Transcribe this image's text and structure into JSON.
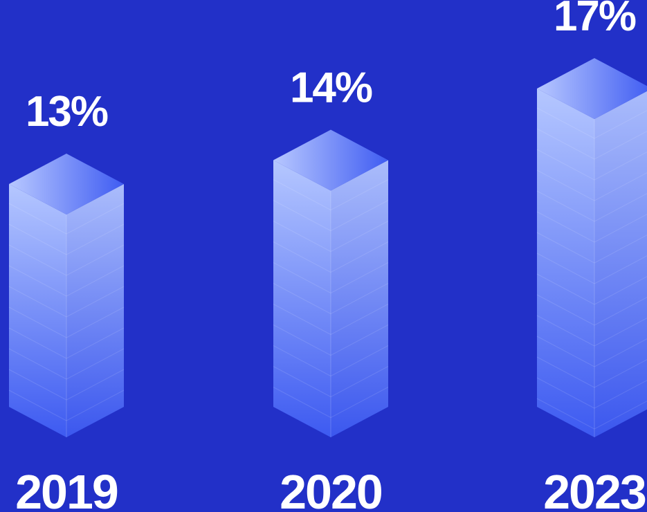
{
  "chart_data": {
    "type": "bar",
    "title": "",
    "xlabel": "",
    "ylabel": "",
    "categories": [
      "2019",
      "2020",
      "2023"
    ],
    "values": [
      13,
      14,
      17
    ],
    "value_labels": [
      "13%",
      "14%",
      "17%"
    ],
    "unit": "%",
    "grid": false,
    "legend": "none",
    "style": "isometric-3d-columns"
  },
  "colors": {
    "background": "#2230c8",
    "column_top_light": "#b8c8ff",
    "column_top_dark": "#3f5cf2",
    "column_front_top": "#b5c7ff",
    "column_front_bottom": "#3d5af1",
    "label": "#ffffff"
  }
}
